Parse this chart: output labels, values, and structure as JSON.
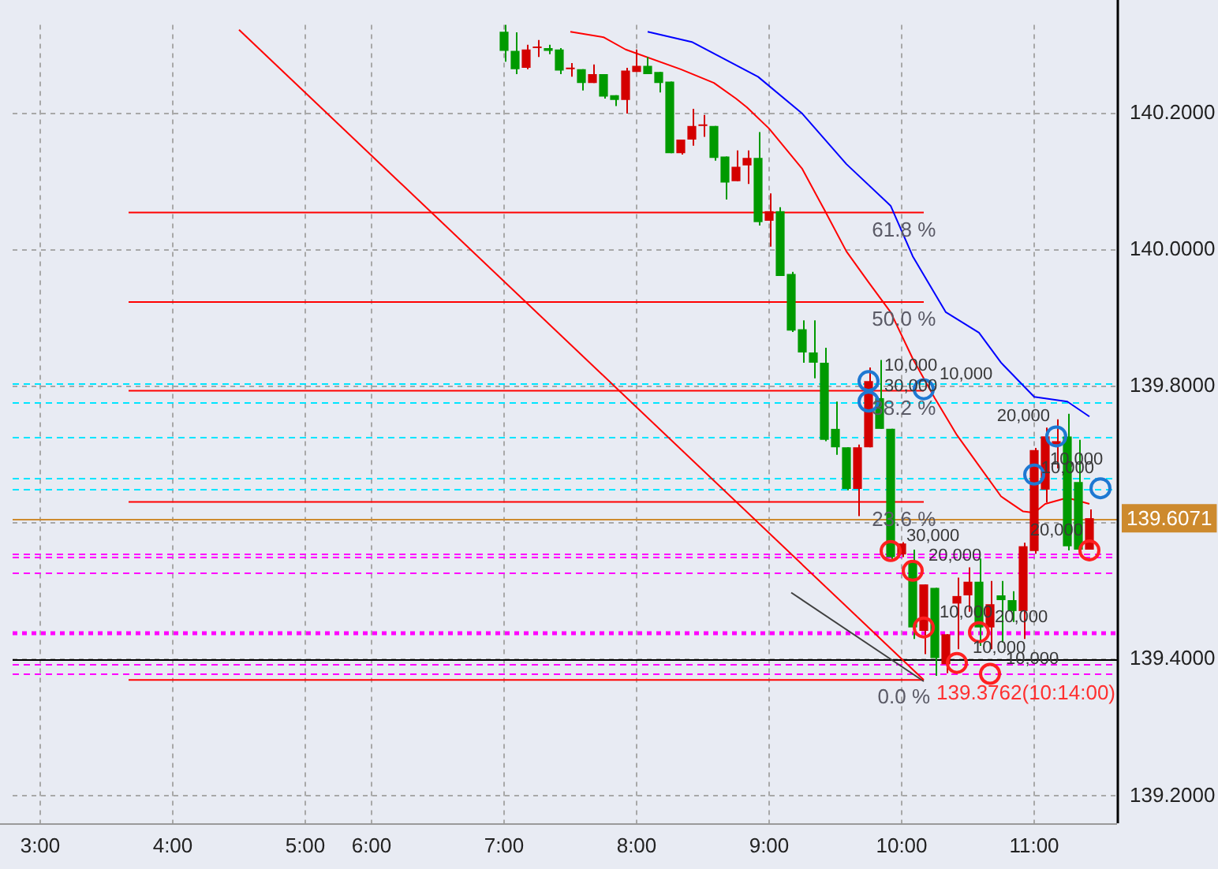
{
  "chart_data": {
    "type": "candlestick",
    "categories": [
      null,
      null,
      "3:00",
      null,
      null,
      null,
      null,
      null,
      null,
      null,
      null,
      null,
      null,
      null,
      "4:00",
      null,
      null,
      null,
      null,
      null,
      null,
      null,
      null,
      null,
      null,
      null,
      "5:00",
      null,
      null,
      null,
      null,
      null,
      "6:00",
      null,
      null,
      null,
      null,
      null,
      null,
      null,
      null,
      null,
      null,
      null,
      "7:00",
      null,
      null,
      null,
      null,
      null,
      null,
      null,
      null,
      null,
      null,
      null,
      "8:00",
      null,
      null,
      null,
      null,
      null,
      null,
      null,
      null,
      null,
      null,
      null,
      "9:00",
      null,
      null,
      null,
      null,
      null,
      null,
      null,
      null,
      null,
      null,
      null,
      "10:00",
      null,
      null,
      null,
      null,
      null,
      null,
      null,
      null,
      null,
      null,
      null,
      "11:00",
      null,
      null,
      null,
      null,
      null,
      null,
      null
    ],
    "ohlc": [
      null,
      null,
      null,
      null,
      null,
      null,
      null,
      null,
      null,
      null,
      null,
      null,
      null,
      null,
      null,
      null,
      null,
      null,
      null,
      null,
      null,
      null,
      null,
      null,
      null,
      null,
      null,
      null,
      null,
      null,
      null,
      null,
      null,
      null,
      null,
      null,
      null,
      null,
      null,
      null,
      null,
      null,
      null,
      null,
      [
        140.32,
        140.33,
        140.276,
        140.292
      ],
      [
        140.292,
        140.319,
        140.258,
        140.265
      ],
      [
        140.267,
        140.301,
        140.265,
        140.294
      ],
      [
        140.296,
        140.308,
        140.283,
        140.296
      ],
      [
        140.296,
        140.301,
        140.287,
        140.292
      ],
      [
        140.294,
        140.296,
        140.258,
        140.263
      ],
      [
        140.265,
        140.274,
        140.254,
        140.265
      ],
      [
        140.265,
        140.265,
        140.234,
        140.245
      ],
      [
        140.245,
        140.272,
        140.245,
        140.258
      ],
      [
        140.258,
        140.258,
        140.222,
        140.225
      ],
      [
        140.227,
        140.227,
        140.211,
        140.22
      ],
      [
        140.22,
        140.267,
        140.2,
        140.263
      ],
      [
        140.261,
        140.294,
        140.261,
        140.27
      ],
      [
        140.27,
        140.283,
        140.258,
        140.258
      ],
      [
        140.261,
        140.261,
        140.231,
        140.245
      ],
      [
        140.247,
        140.247,
        140.142,
        140.142
      ],
      [
        140.142,
        140.162,
        140.14,
        140.162
      ],
      [
        140.162,
        140.207,
        140.153,
        140.182
      ],
      [
        140.182,
        140.198,
        140.166,
        140.182
      ],
      [
        140.182,
        140.182,
        140.131,
        140.135
      ],
      [
        140.137,
        140.137,
        140.074,
        140.099
      ],
      [
        140.101,
        140.146,
        140.101,
        140.122
      ],
      [
        140.124,
        140.146,
        140.097,
        140.135
      ],
      [
        140.135,
        140.173,
        140.036,
        140.041
      ],
      [
        140.043,
        140.083,
        140.005,
        140.057
      ],
      [
        140.057,
        140.063,
        139.962,
        139.962
      ],
      [
        139.965,
        139.968,
        139.88,
        139.882
      ],
      [
        139.884,
        139.897,
        139.835,
        139.85
      ],
      [
        139.85,
        139.897,
        139.812,
        139.835
      ],
      [
        139.835,
        139.857,
        139.72,
        139.722
      ],
      [
        139.738,
        139.778,
        139.7,
        139.711
      ],
      [
        139.711,
        139.711,
        139.648,
        139.65
      ],
      [
        139.65,
        139.715,
        139.61,
        139.711
      ],
      [
        139.711,
        139.828,
        139.711,
        139.808
      ],
      [
        139.783,
        139.839,
        139.738,
        139.738
      ],
      [
        139.738,
        139.738,
        139.546,
        139.55
      ],
      [
        139.554,
        139.572,
        139.55,
        139.57
      ],
      [
        139.543,
        139.561,
        139.43,
        139.447
      ],
      [
        139.442,
        139.51,
        139.408,
        139.51
      ],
      [
        139.505,
        139.505,
        139.3762,
        139.402
      ],
      [
        139.393,
        139.437,
        139.38,
        139.437
      ],
      [
        139.482,
        139.52,
        139.415,
        139.493
      ],
      [
        139.494,
        139.535,
        139.47,
        139.514
      ],
      [
        139.514,
        139.548,
        139.42,
        139.447
      ],
      [
        139.447,
        139.515,
        139.415,
        139.481
      ],
      [
        139.494,
        139.515,
        139.425,
        139.487
      ],
      [
        139.487,
        139.5,
        139.455,
        139.471
      ],
      [
        139.471,
        139.571,
        139.43,
        139.566
      ],
      [
        139.559,
        139.71,
        139.555,
        139.707
      ],
      [
        139.649,
        139.74,
        139.63,
        139.727
      ],
      [
        139.715,
        139.752,
        139.68,
        139.72
      ],
      [
        139.727,
        139.76,
        139.56,
        139.566
      ],
      [
        139.66,
        139.722,
        139.561,
        139.561
      ],
      [
        139.561,
        139.62,
        139.561,
        139.6071
      ],
      null,
      null
    ],
    "colors": [
      null,
      null,
      null,
      null,
      null,
      null,
      null,
      null,
      null,
      null,
      null,
      null,
      null,
      null,
      null,
      null,
      null,
      null,
      null,
      null,
      null,
      null,
      null,
      null,
      null,
      null,
      null,
      null,
      null,
      null,
      null,
      null,
      null,
      null,
      null,
      null,
      null,
      null,
      null,
      null,
      null,
      null,
      null,
      null,
      "#009a00",
      "#009a00",
      "#d40000",
      "#d40000",
      "#009a00",
      "#009a00",
      "#d40000",
      "#009a00",
      "#d40000",
      "#009a00",
      "#009a00",
      "#d40000",
      "#d40000",
      "#009a00",
      "#009a00",
      "#009a00",
      "#d40000",
      "#d40000",
      "#d40000",
      "#009a00",
      "#009a00",
      "#d40000",
      "#d40000",
      "#009a00",
      "#d40000",
      "#009a00",
      "#009a00",
      "#009a00",
      "#009a00",
      "#009a00",
      "#009a00",
      "#009a00",
      "#d40000",
      "#d40000",
      "#009a00",
      "#009a00",
      "#d40000",
      "#009a00",
      "#d40000",
      "#009a00",
      "#d40000",
      "#d40000",
      "#d40000",
      "#009a00",
      "#d40000",
      "#009a00",
      "#009a00",
      "#d40000",
      "#d40000",
      "#d40000",
      "#d40000",
      "#009a00",
      "#009a00",
      "#d40000",
      null,
      null
    ],
    "series": [
      {
        "type": "line",
        "color": "#ff0000",
        "values": [
          null,
          null,
          null,
          null,
          null,
          null,
          null,
          null,
          null,
          null,
          null,
          null,
          null,
          null,
          null,
          null,
          null,
          null,
          null,
          null,
          null,
          null,
          null,
          null,
          null,
          null,
          null,
          null,
          null,
          null,
          null,
          null,
          null,
          null,
          null,
          null,
          null,
          null,
          null,
          null,
          null,
          null,
          null,
          null,
          null,
          null,
          null,
          null,
          null,
          null,
          140.32,
          null,
          null,
          140.312,
          null,
          140.294,
          null,
          null,
          null,
          null,
          140.265,
          null,
          null,
          140.245,
          null,
          140.222,
          140.209,
          null,
          140.178,
          null,
          null,
          140.119,
          null,
          140.059,
          null,
          139.998,
          null,
          139.953,
          null,
          139.909,
          null,
          139.841,
          null,
          139.783,
          null,
          139.729,
          null,
          139.684,
          null,
          139.639,
          null,
          139.617,
          139.615,
          139.628,
          null,
          139.637,
          null,
          139.628,
          null,
          null
        ]
      },
      {
        "type": "line",
        "color": "#0000ff",
        "values": [
          null,
          null,
          null,
          null,
          null,
          null,
          null,
          null,
          null,
          null,
          null,
          null,
          null,
          null,
          null,
          null,
          null,
          null,
          null,
          null,
          null,
          null,
          null,
          null,
          null,
          null,
          null,
          null,
          null,
          null,
          null,
          null,
          null,
          null,
          null,
          null,
          null,
          null,
          null,
          null,
          null,
          null,
          null,
          null,
          null,
          null,
          null,
          null,
          null,
          null,
          null,
          null,
          null,
          null,
          null,
          null,
          null,
          140.32,
          null,
          null,
          null,
          140.305,
          null,
          null,
          null,
          null,
          null,
          140.254,
          null,
          null,
          null,
          140.2,
          null,
          null,
          null,
          140.126,
          null,
          null,
          null,
          140.065,
          null,
          139.991,
          null,
          null,
          139.909,
          null,
          null,
          139.879,
          null,
          139.835,
          null,
          null,
          139.785,
          null,
          null,
          139.778,
          null,
          139.756,
          null,
          null
        ]
      },
      {
        "type": "line",
        "color": "#ff0000",
        "values": [
          null,
          null,
          null,
          null,
          null,
          null,
          null,
          null,
          null,
          null,
          null,
          null,
          null,
          null,
          null,
          null,
          null,
          null,
          null,
          null,
          140.323,
          null,
          null,
          null,
          null,
          null,
          null,
          null,
          null,
          null,
          null,
          null,
          null,
          null,
          null,
          null,
          null,
          null,
          null,
          null,
          null,
          null,
          null,
          null,
          null,
          null,
          null,
          null,
          null,
          null,
          null,
          null,
          null,
          null,
          null,
          null,
          null,
          null,
          null,
          null,
          null,
          null,
          null,
          null,
          null,
          null,
          null,
          null,
          null,
          null,
          null,
          null,
          null,
          null,
          null,
          null,
          null,
          null,
          null,
          null,
          null,
          null,
          139.37,
          null,
          null,
          null,
          null,
          null,
          null,
          null,
          null,
          null,
          null,
          null,
          null,
          null,
          null,
          null,
          null,
          null
        ]
      },
      {
        "type": "line",
        "color": "#404040",
        "values": [
          null,
          null,
          null,
          null,
          null,
          null,
          null,
          null,
          null,
          null,
          null,
          null,
          null,
          null,
          null,
          null,
          null,
          null,
          null,
          null,
          null,
          null,
          null,
          null,
          null,
          null,
          null,
          null,
          null,
          null,
          null,
          null,
          null,
          null,
          null,
          null,
          null,
          null,
          null,
          null,
          null,
          null,
          null,
          null,
          null,
          null,
          null,
          null,
          null,
          null,
          null,
          null,
          null,
          null,
          null,
          null,
          null,
          null,
          null,
          null,
          null,
          null,
          null,
          null,
          null,
          null,
          null,
          null,
          null,
          null,
          139.498,
          null,
          null,
          null,
          null,
          null,
          null,
          null,
          null,
          null,
          null,
          null,
          139.368,
          null,
          null,
          null,
          null,
          null,
          null,
          null,
          null,
          null,
          null,
          null,
          null,
          null,
          null,
          null,
          null,
          null
        ]
      },
      {
        "type": "line",
        "color": "#ff0000",
        "values": [
          null,
          null,
          null,
          null,
          null,
          null,
          null,
          null,
          null,
          null,
          140.055,
          null,
          null,
          null,
          null,
          null,
          null,
          null,
          null,
          null,
          null,
          null,
          null,
          null,
          null,
          null,
          null,
          null,
          null,
          null,
          null,
          null,
          null,
          null,
          null,
          null,
          null,
          null,
          null,
          null,
          null,
          null,
          null,
          null,
          null,
          null,
          null,
          null,
          null,
          null,
          null,
          null,
          null,
          null,
          null,
          null,
          null,
          null,
          null,
          null,
          null,
          null,
          null,
          null,
          null,
          null,
          null,
          null,
          null,
          null,
          null,
          null,
          null,
          null,
          null,
          null,
          null,
          null,
          null,
          null,
          null,
          null,
          140.055,
          null,
          null,
          null,
          null,
          null,
          null,
          null,
          null,
          null,
          null,
          null,
          null,
          null,
          null,
          null,
          null,
          null
        ]
      },
      {
        "type": "line",
        "color": "#ff0000",
        "values": [
          null,
          null,
          null,
          null,
          null,
          null,
          null,
          null,
          null,
          null,
          139.924,
          null,
          null,
          null,
          null,
          null,
          null,
          null,
          null,
          null,
          null,
          null,
          null,
          null,
          null,
          null,
          null,
          null,
          null,
          null,
          null,
          null,
          null,
          null,
          null,
          null,
          null,
          null,
          null,
          null,
          null,
          null,
          null,
          null,
          null,
          null,
          null,
          null,
          null,
          null,
          null,
          null,
          null,
          null,
          null,
          null,
          null,
          null,
          null,
          null,
          null,
          null,
          null,
          null,
          null,
          null,
          null,
          null,
          null,
          null,
          null,
          null,
          null,
          null,
          null,
          null,
          null,
          null,
          null,
          null,
          null,
          null,
          139.924,
          null,
          null,
          null,
          null,
          null,
          null,
          null,
          null,
          null,
          null,
          null,
          null,
          null,
          null,
          null,
          null,
          null
        ]
      },
      {
        "type": "line",
        "color": "#ff0000",
        "values": [
          null,
          null,
          null,
          null,
          null,
          null,
          null,
          null,
          null,
          null,
          139.794,
          null,
          null,
          null,
          null,
          null,
          null,
          null,
          null,
          null,
          null,
          null,
          null,
          null,
          null,
          null,
          null,
          null,
          null,
          null,
          null,
          null,
          null,
          null,
          null,
          null,
          null,
          null,
          null,
          null,
          null,
          null,
          null,
          null,
          null,
          null,
          null,
          null,
          null,
          null,
          null,
          null,
          null,
          null,
          null,
          null,
          null,
          null,
          null,
          null,
          null,
          null,
          null,
          null,
          null,
          null,
          null,
          null,
          null,
          null,
          null,
          null,
          null,
          null,
          null,
          null,
          null,
          null,
          null,
          null,
          null,
          null,
          139.794,
          null,
          null,
          null,
          null,
          null,
          null,
          null,
          null,
          null,
          null,
          null,
          null,
          null,
          null,
          null,
          null,
          null
        ]
      },
      {
        "type": "line",
        "color": "#ff0000",
        "values": [
          null,
          null,
          null,
          null,
          null,
          null,
          null,
          null,
          null,
          null,
          139.631,
          null,
          null,
          null,
          null,
          null,
          null,
          null,
          null,
          null,
          null,
          null,
          null,
          null,
          null,
          null,
          null,
          null,
          null,
          null,
          null,
          null,
          null,
          null,
          null,
          null,
          null,
          null,
          null,
          null,
          null,
          null,
          null,
          null,
          null,
          null,
          null,
          null,
          null,
          null,
          null,
          null,
          null,
          null,
          null,
          null,
          null,
          null,
          null,
          null,
          null,
          null,
          null,
          null,
          null,
          null,
          null,
          null,
          null,
          null,
          null,
          null,
          null,
          null,
          null,
          null,
          null,
          null,
          null,
          null,
          null,
          null,
          139.631,
          null,
          null,
          null,
          null,
          null,
          null,
          null,
          null,
          null,
          null,
          null,
          null,
          null,
          null,
          null,
          null,
          null
        ]
      },
      {
        "type": "line",
        "color": "#ff0000",
        "values": [
          null,
          null,
          null,
          null,
          null,
          null,
          null,
          null,
          null,
          null,
          139.37,
          null,
          null,
          null,
          null,
          null,
          null,
          null,
          null,
          null,
          null,
          null,
          null,
          null,
          null,
          null,
          null,
          null,
          null,
          null,
          null,
          null,
          null,
          null,
          null,
          null,
          null,
          null,
          null,
          null,
          null,
          null,
          null,
          null,
          null,
          null,
          null,
          null,
          null,
          null,
          null,
          null,
          null,
          null,
          null,
          null,
          null,
          null,
          null,
          null,
          null,
          null,
          null,
          null,
          null,
          null,
          null,
          null,
          null,
          null,
          null,
          null,
          null,
          null,
          null,
          null,
          null,
          null,
          null,
          null,
          null,
          null,
          139.37,
          null,
          null,
          null,
          null,
          null,
          null,
          null,
          null,
          null,
          null,
          null,
          null,
          null,
          null,
          null,
          null,
          null
        ]
      },
      {
        "type": "scatter",
        "color": "#1e78d2",
        "marker": "circle",
        "values": [
          null,
          null,
          null,
          null,
          null,
          null,
          null,
          null,
          null,
          null,
          null,
          null,
          null,
          null,
          null,
          null,
          null,
          null,
          null,
          null,
          null,
          null,
          null,
          null,
          null,
          null,
          null,
          null,
          null,
          null,
          null,
          null,
          null,
          null,
          null,
          null,
          null,
          null,
          null,
          null,
          null,
          null,
          null,
          null,
          null,
          null,
          null,
          null,
          null,
          null,
          null,
          null,
          null,
          null,
          null,
          null,
          null,
          null,
          null,
          null,
          null,
          null,
          null,
          null,
          null,
          null,
          null,
          null,
          null,
          null,
          null,
          null,
          null,
          null,
          null,
          null,
          null,
          139.808,
          null,
          null,
          null,
          null,
          139.796,
          null,
          null,
          null,
          null,
          null,
          null,
          null,
          null,
          null,
          139.671,
          null,
          139.727,
          null,
          null,
          null,
          139.651,
          null
        ]
      },
      {
        "type": "scatter",
        "color": "#1e78d2",
        "marker": "circle",
        "values": [
          null,
          null,
          null,
          null,
          null,
          null,
          null,
          null,
          null,
          null,
          null,
          null,
          null,
          null,
          null,
          null,
          null,
          null,
          null,
          null,
          null,
          null,
          null,
          null,
          null,
          null,
          null,
          null,
          null,
          null,
          null,
          null,
          null,
          null,
          null,
          null,
          null,
          null,
          null,
          null,
          null,
          null,
          null,
          null,
          null,
          null,
          null,
          null,
          null,
          null,
          null,
          null,
          null,
          null,
          null,
          null,
          null,
          null,
          null,
          null,
          null,
          null,
          null,
          null,
          null,
          null,
          null,
          null,
          null,
          null,
          null,
          null,
          null,
          null,
          null,
          null,
          null,
          139.778,
          null,
          null,
          null,
          null,
          null,
          null,
          null,
          null,
          null,
          null,
          null,
          null,
          null,
          null,
          null,
          null,
          null,
          null,
          null,
          null,
          null,
          null
        ]
      },
      {
        "type": "scatter",
        "color": "#ff2020",
        "marker": "circle",
        "values": [
          null,
          null,
          null,
          null,
          null,
          null,
          null,
          null,
          null,
          null,
          null,
          null,
          null,
          null,
          null,
          null,
          null,
          null,
          null,
          null,
          null,
          null,
          null,
          null,
          null,
          null,
          null,
          null,
          null,
          null,
          null,
          null,
          null,
          null,
          null,
          null,
          null,
          null,
          null,
          null,
          null,
          null,
          null,
          null,
          null,
          null,
          null,
          null,
          null,
          null,
          null,
          null,
          null,
          null,
          null,
          null,
          null,
          null,
          null,
          null,
          null,
          null,
          null,
          null,
          null,
          null,
          null,
          null,
          null,
          null,
          null,
          null,
          null,
          null,
          null,
          null,
          null,
          null,
          null,
          139.559,
          null,
          139.53,
          139.447,
          null,
          null,
          139.395,
          null,
          139.44,
          139.379,
          null,
          null,
          null,
          null,
          null,
          null,
          null,
          null,
          139.56,
          null,
          null
        ]
      }
    ],
    "ylim": [
      139.16,
      140.33
    ],
    "yticks": [
      {
        "value": 139.2,
        "label": "139.2000"
      },
      {
        "value": 139.4,
        "label": "139.4000"
      },
      {
        "value": 139.6,
        "label": null
      },
      {
        "value": 139.8,
        "label": "139.8000"
      },
      {
        "value": 140.0,
        "label": "140.0000"
      },
      {
        "value": 140.2,
        "label": "140.2000"
      }
    ],
    "grid": true,
    "ref_lines": [
      {
        "axis": "y",
        "value": 139.805,
        "color": "#00e5ff",
        "line_style": "dashed"
      },
      {
        "axis": "y",
        "value": 139.778,
        "color": "#00e5ff",
        "line_style": "dashed"
      },
      {
        "axis": "y",
        "value": 139.726,
        "color": "#00e5ff",
        "line_style": "dashed"
      },
      {
        "axis": "y",
        "value": 139.666,
        "color": "#00e5ff",
        "line_style": "dashed"
      },
      {
        "axis": "y",
        "value": 139.65,
        "color": "#00e5ff",
        "line_style": "dashed"
      },
      {
        "axis": "y",
        "value": 139.6071,
        "label": "139.6071",
        "color": "#cd8a2e",
        "line_style": "solid"
      },
      {
        "axis": "y",
        "value": 139.556,
        "color": "#ff00ff",
        "line_style": "dashed"
      },
      {
        "axis": "y",
        "value": 139.551,
        "color": "#ff00ff",
        "line_style": "dashed"
      },
      {
        "axis": "y",
        "value": 139.527,
        "color": "#ff00ff",
        "line_style": "dashed"
      },
      {
        "axis": "y",
        "value": 139.44,
        "color": "#ff00ff",
        "line_style": "dotted"
      },
      {
        "axis": "y",
        "value": 139.4,
        "color": "#000000",
        "line_style": "solid"
      },
      {
        "axis": "y",
        "value": 139.394,
        "color": "#ff00ff",
        "line_style": "dashed"
      },
      {
        "axis": "y",
        "value": 139.379,
        "color": "#ff00ff",
        "line_style": "dashed"
      }
    ],
    "annotations": [
      {
        "text": "10,000",
        "y": 139.808
      },
      {
        "text": "30,000",
        "y": 139.778
      },
      {
        "text": "10,000",
        "y": 139.796
      },
      {
        "text": "20,000",
        "y": 139.727
      },
      {
        "text": "10,000",
        "y": 139.671
      },
      {
        "text": "10,000",
        "y": 139.651
      },
      {
        "text": "30,000",
        "y": 139.559
      },
      {
        "text": "20,000",
        "y": 139.53
      },
      {
        "text": "10,000",
        "y": 139.447
      },
      {
        "text": "10,000",
        "y": 139.395
      },
      {
        "text": "20,000",
        "y": 139.44
      },
      {
        "text": "10,000",
        "y": 139.379
      },
      {
        "text": "20,000",
        "y": 139.56
      },
      {
        "text": "61.8 %",
        "y": 140.055
      },
      {
        "text": "50.0 %",
        "y": 139.924
      },
      {
        "text": "38.2 %",
        "y": 139.794
      },
      {
        "text": "23.6 %",
        "y": 139.631
      },
      {
        "text": "0.0 %",
        "y": 139.37
      },
      {
        "text": "139.3762(10:14:00)",
        "y": 139.3762
      }
    ]
  }
}
